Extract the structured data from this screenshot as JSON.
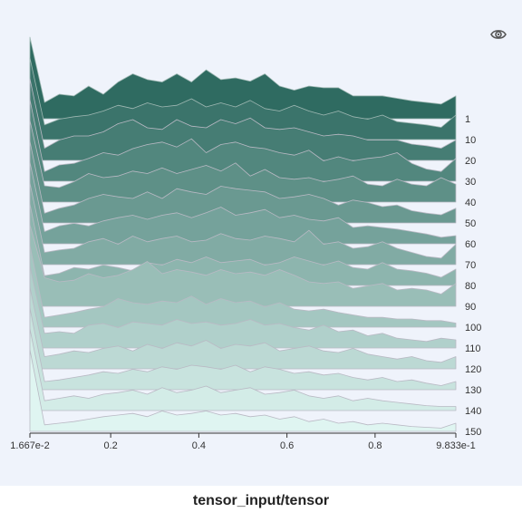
{
  "chart_data": {
    "type": "area",
    "title": "tensor_input/tensor",
    "xlim": [
      0.01667,
      0.9833
    ],
    "x_ticks": [
      {
        "value": 0.01667,
        "label": "1.667e-2"
      },
      {
        "value": 0.2,
        "label": "0.2"
      },
      {
        "value": 0.4,
        "label": "0.4"
      },
      {
        "value": 0.6,
        "label": "0.6"
      },
      {
        "value": 0.8,
        "label": "0.8"
      },
      {
        "value": 0.9833,
        "label": "9.833e-1"
      }
    ],
    "x": [
      0.01667,
      0.05,
      0.0833,
      0.1167,
      0.15,
      0.1833,
      0.2167,
      0.25,
      0.2833,
      0.3167,
      0.35,
      0.3833,
      0.4167,
      0.45,
      0.4833,
      0.5167,
      0.55,
      0.5833,
      0.6167,
      0.65,
      0.6833,
      0.7167,
      0.75,
      0.7833,
      0.8167,
      0.85,
      0.8833,
      0.9167,
      0.95,
      0.9833
    ],
    "series_colors": {
      "first": "#2f6b61",
      "last": "#dff5f1"
    },
    "series": [
      {
        "name": "1",
        "values": [
          1.0,
          0.2,
          0.3,
          0.28,
          0.4,
          0.3,
          0.45,
          0.55,
          0.48,
          0.45,
          0.55,
          0.45,
          0.6,
          0.48,
          0.5,
          0.46,
          0.55,
          0.4,
          0.35,
          0.4,
          0.38,
          0.38,
          0.28,
          0.28,
          0.28,
          0.25,
          0.22,
          0.2,
          0.18,
          0.28
        ]
      },
      {
        "name": "10",
        "values": [
          1.0,
          0.18,
          0.25,
          0.28,
          0.3,
          0.35,
          0.42,
          0.38,
          0.45,
          0.4,
          0.42,
          0.5,
          0.4,
          0.45,
          0.4,
          0.48,
          0.38,
          0.35,
          0.42,
          0.35,
          0.3,
          0.35,
          0.28,
          0.25,
          0.3,
          0.22,
          0.2,
          0.18,
          0.15,
          0.3
        ]
      },
      {
        "name": "20",
        "values": [
          1.0,
          0.15,
          0.25,
          0.3,
          0.3,
          0.35,
          0.45,
          0.5,
          0.4,
          0.38,
          0.5,
          0.42,
          0.4,
          0.5,
          0.45,
          0.52,
          0.4,
          0.38,
          0.4,
          0.35,
          0.3,
          0.32,
          0.3,
          0.25,
          0.25,
          0.25,
          0.2,
          0.18,
          0.15,
          0.25
        ]
      },
      {
        "name": "30",
        "values": [
          1.0,
          0.12,
          0.2,
          0.22,
          0.28,
          0.35,
          0.32,
          0.4,
          0.45,
          0.48,
          0.42,
          0.52,
          0.35,
          0.45,
          0.48,
          0.42,
          0.4,
          0.35,
          0.32,
          0.38,
          0.25,
          0.3,
          0.25,
          0.28,
          0.3,
          0.35,
          0.22,
          0.15,
          0.12,
          0.28
        ]
      },
      {
        "name": "40",
        "values": [
          1.0,
          0.2,
          0.18,
          0.25,
          0.35,
          0.3,
          0.32,
          0.38,
          0.35,
          0.42,
          0.35,
          0.4,
          0.45,
          0.38,
          0.48,
          0.32,
          0.4,
          0.3,
          0.28,
          0.3,
          0.25,
          0.28,
          0.32,
          0.22,
          0.2,
          0.28,
          0.22,
          0.2,
          0.3,
          0.22
        ]
      },
      {
        "name": "50",
        "values": [
          1.0,
          0.12,
          0.18,
          0.22,
          0.3,
          0.35,
          0.32,
          0.3,
          0.38,
          0.3,
          0.42,
          0.38,
          0.35,
          0.45,
          0.42,
          0.4,
          0.38,
          0.3,
          0.32,
          0.35,
          0.3,
          0.22,
          0.28,
          0.25,
          0.2,
          0.22,
          0.15,
          0.12,
          0.1,
          0.18
        ]
      },
      {
        "name": "60",
        "values": [
          1.0,
          0.15,
          0.22,
          0.25,
          0.22,
          0.28,
          0.32,
          0.35,
          0.3,
          0.35,
          0.38,
          0.32,
          0.38,
          0.45,
          0.35,
          0.38,
          0.42,
          0.32,
          0.35,
          0.3,
          0.28,
          0.32,
          0.2,
          0.22,
          0.2,
          0.18,
          0.15,
          0.12,
          0.08,
          0.1
        ]
      },
      {
        "name": "70",
        "values": [
          1.0,
          0.15,
          0.18,
          0.2,
          0.28,
          0.32,
          0.25,
          0.35,
          0.28,
          0.32,
          0.35,
          0.28,
          0.3,
          0.38,
          0.32,
          0.3,
          0.35,
          0.32,
          0.28,
          0.42,
          0.25,
          0.28,
          0.2,
          0.22,
          0.28,
          0.2,
          0.15,
          0.1,
          0.08,
          0.25
        ]
      },
      {
        "name": "80",
        "values": [
          1.0,
          0.12,
          0.15,
          0.22,
          0.2,
          0.25,
          0.22,
          0.18,
          0.28,
          0.25,
          0.32,
          0.28,
          0.35,
          0.28,
          0.3,
          0.32,
          0.25,
          0.28,
          0.35,
          0.3,
          0.25,
          0.3,
          0.22,
          0.2,
          0.28,
          0.2,
          0.18,
          0.15,
          0.1,
          0.2
        ]
      },
      {
        "name": "90",
        "values": [
          1.0,
          0.35,
          0.3,
          0.32,
          0.4,
          0.35,
          0.38,
          0.45,
          0.55,
          0.4,
          0.45,
          0.42,
          0.38,
          0.45,
          0.4,
          0.42,
          0.38,
          0.45,
          0.38,
          0.3,
          0.28,
          0.3,
          0.22,
          0.25,
          0.28,
          0.2,
          0.22,
          0.2,
          0.15,
          0.28
        ]
      },
      {
        "name": "100",
        "values": [
          1.0,
          0.12,
          0.15,
          0.18,
          0.22,
          0.25,
          0.35,
          0.3,
          0.28,
          0.32,
          0.3,
          0.38,
          0.28,
          0.35,
          0.3,
          0.32,
          0.25,
          0.3,
          0.22,
          0.2,
          0.22,
          0.18,
          0.15,
          0.12,
          0.12,
          0.1,
          0.1,
          0.08,
          0.08,
          0.05
        ]
      },
      {
        "name": "110",
        "values": [
          1.0,
          0.18,
          0.2,
          0.18,
          0.28,
          0.3,
          0.25,
          0.32,
          0.3,
          0.28,
          0.35,
          0.3,
          0.32,
          0.28,
          0.3,
          0.35,
          0.28,
          0.3,
          0.25,
          0.22,
          0.28,
          0.2,
          0.22,
          0.15,
          0.18,
          0.12,
          0.1,
          0.08,
          0.12,
          0.1
        ]
      },
      {
        "name": "120",
        "values": [
          1.0,
          0.15,
          0.18,
          0.22,
          0.2,
          0.25,
          0.28,
          0.22,
          0.3,
          0.25,
          0.32,
          0.28,
          0.35,
          0.25,
          0.3,
          0.28,
          0.32,
          0.22,
          0.25,
          0.28,
          0.22,
          0.2,
          0.25,
          0.18,
          0.15,
          0.12,
          0.15,
          0.1,
          0.08,
          0.15
        ]
      },
      {
        "name": "130",
        "values": [
          1.0,
          0.1,
          0.12,
          0.15,
          0.18,
          0.22,
          0.2,
          0.25,
          0.22,
          0.28,
          0.25,
          0.3,
          0.28,
          0.25,
          0.3,
          0.22,
          0.28,
          0.25,
          0.2,
          0.22,
          0.18,
          0.2,
          0.15,
          0.12,
          0.15,
          0.1,
          0.12,
          0.08,
          0.05,
          0.1
        ]
      },
      {
        "name": "140",
        "values": [
          1.0,
          0.12,
          0.15,
          0.18,
          0.15,
          0.2,
          0.22,
          0.25,
          0.2,
          0.28,
          0.22,
          0.25,
          0.3,
          0.22,
          0.25,
          0.28,
          0.2,
          0.22,
          0.25,
          0.18,
          0.15,
          0.18,
          0.12,
          0.15,
          0.12,
          0.1,
          0.08,
          0.06,
          0.05,
          0.05
        ]
      },
      {
        "name": "150",
        "values": [
          1.0,
          0.08,
          0.1,
          0.12,
          0.15,
          0.18,
          0.2,
          0.22,
          0.18,
          0.25,
          0.2,
          0.22,
          0.25,
          0.2,
          0.22,
          0.18,
          0.2,
          0.15,
          0.18,
          0.12,
          0.15,
          0.1,
          0.12,
          0.08,
          0.1,
          0.08,
          0.06,
          0.05,
          0.04,
          0.1
        ]
      }
    ]
  }
}
